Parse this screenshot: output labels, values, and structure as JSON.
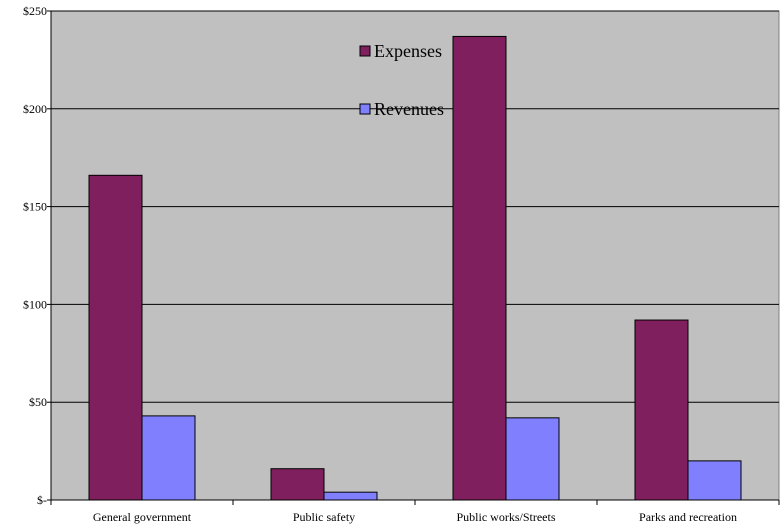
{
  "chart_data": {
    "type": "bar",
    "title": "",
    "xlabel": "",
    "ylabel": "",
    "categories": [
      "General government",
      "Public safety",
      "Public works/Streets",
      "Parks and recreation"
    ],
    "series": [
      {
        "name": "Expenses",
        "values": [
          166,
          16,
          237,
          92
        ],
        "color": "#7f1f5e"
      },
      {
        "name": "Revenues",
        "values": [
          43,
          4,
          42,
          20
        ],
        "color": "#8080ff"
      }
    ],
    "ylim": [
      0,
      250
    ],
    "yticks": [
      0,
      50,
      100,
      150,
      200,
      250
    ],
    "ytick_labels": [
      "$-",
      "$50",
      "$100",
      "$150",
      "$200",
      "$250"
    ],
    "grid": true,
    "legend_position": "top-center",
    "plot_background": "#c0c0c0"
  }
}
